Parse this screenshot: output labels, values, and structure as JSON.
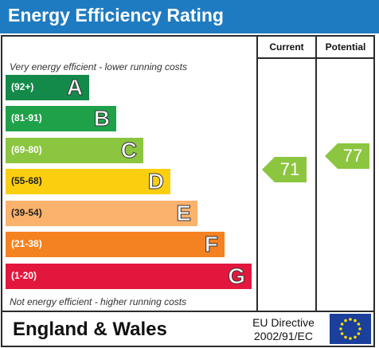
{
  "header": {
    "title": "Energy Efficiency Rating"
  },
  "columns": {
    "current": "Current",
    "potential": "Potential"
  },
  "captions": {
    "top": "Very energy efficient - lower running costs",
    "bottom": "Not energy efficient - higher running costs"
  },
  "footer": {
    "region": "England & Wales",
    "directive_line1": "EU Directive",
    "directive_line2": "2002/91/EC"
  },
  "colors": {
    "header": "#1f7bc1",
    "A": "#138a4a",
    "B": "#1fa14a",
    "C": "#8cc540",
    "D": "#fbcf10",
    "E": "#fbb26c",
    "F": "#f58220",
    "G": "#e3173d",
    "score": "#8cc540"
  },
  "chart_data": {
    "type": "bar",
    "categories": [
      "A",
      "B",
      "C",
      "D",
      "E",
      "F",
      "G"
    ],
    "ranges": [
      "(92+)",
      "(81-91)",
      "(69-80)",
      "(55-68)",
      "(39-54)",
      "(21-38)",
      "(1-20)"
    ],
    "current": {
      "value": 71,
      "label": "71"
    },
    "potential": {
      "value": 77,
      "label": "77"
    }
  }
}
